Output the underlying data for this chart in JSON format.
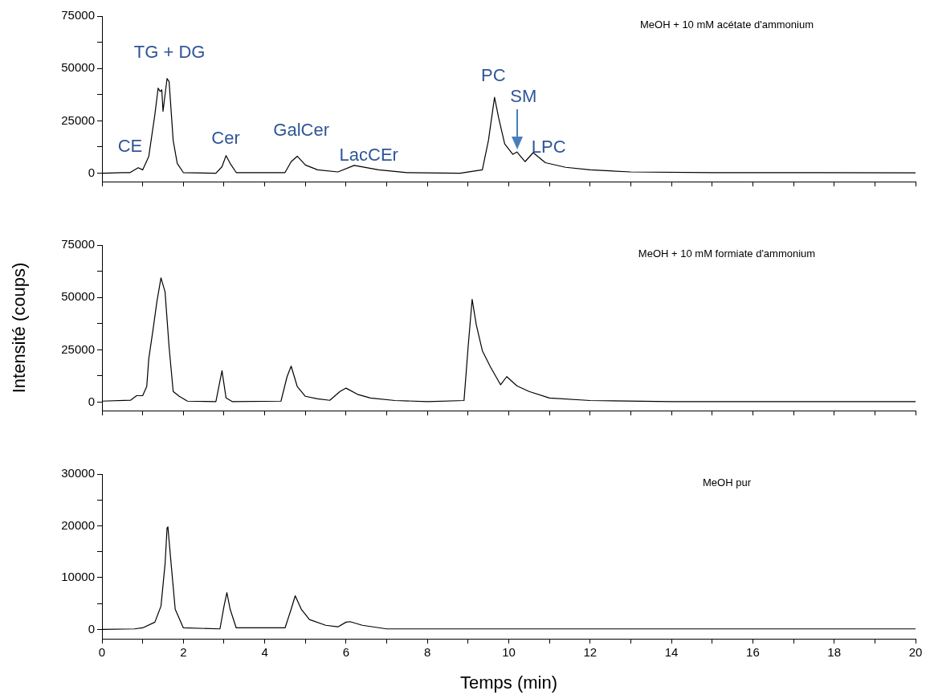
{
  "chart_data": [
    {
      "type": "line",
      "title": "MeOH + 10 mM acétate d'ammonium",
      "tick_labels": "y",
      "x": [
        0,
        0.5,
        0.69,
        0.89,
        1.0,
        1.15,
        1.3,
        1.38,
        1.43,
        1.47,
        1.5,
        1.55,
        1.6,
        1.65,
        1.75,
        1.85,
        2.0,
        2.8,
        2.95,
        3.05,
        3.15,
        3.3,
        4.5,
        4.65,
        4.8,
        5.0,
        5.3,
        5.8,
        6.2,
        6.8,
        7.5,
        8.8,
        9.35,
        9.5,
        9.65,
        9.75,
        9.9,
        10.1,
        10.2,
        10.4,
        10.6,
        10.9,
        11.4,
        12,
        13,
        15,
        20
      ],
      "series": [
        {
          "color": "#000000",
          "values": [
            0,
            300,
            300,
            2600,
            1600,
            8000,
            28000,
            40600,
            39000,
            39800,
            29600,
            37400,
            45200,
            43700,
            15600,
            4700,
            300,
            0,
            3100,
            8400,
            4700,
            300,
            300,
            5500,
            8100,
            3900,
            1600,
            600,
            3700,
            1600,
            300,
            0,
            1600,
            15600,
            36200,
            26500,
            14000,
            9000,
            10100,
            5500,
            9800,
            5000,
            2800,
            1600,
            600,
            300,
            200
          ]
        }
      ],
      "xlim": [
        0,
        20
      ],
      "xticks": [
        0,
        {
          "value": 1,
          "label": null
        },
        2,
        {
          "value": 3,
          "label": null
        },
        4,
        {
          "value": 5,
          "label": null
        },
        6,
        {
          "value": 7,
          "label": null
        },
        8,
        {
          "value": 9,
          "label": null
        },
        10,
        {
          "value": 11,
          "label": null
        },
        12,
        {
          "value": 13,
          "label": null
        },
        14,
        {
          "value": 15,
          "label": null
        },
        16,
        {
          "value": 17,
          "label": null
        },
        18,
        {
          "value": 19,
          "label": null
        },
        20
      ],
      "ylim": [
        -4000,
        75000
      ],
      "yticks": [
        0,
        {
          "value": 12500,
          "label": null
        },
        25000,
        {
          "value": 37500,
          "label": null
        },
        50000,
        {
          "value": 62500,
          "label": null
        },
        75000
      ],
      "annotations": [
        "CE",
        "TG + DG",
        "Cer",
        "GalCer",
        "LacCEr",
        "PC",
        "SM",
        "LPC"
      ]
    },
    {
      "type": "line",
      "title": "MeOH + 10 mM formiate d'ammonium",
      "tick_labels": "y",
      "ylabel": "Intensité (coups)",
      "x": [
        0,
        0.7,
        0.85,
        1.0,
        1.1,
        1.15,
        1.25,
        1.35,
        1.45,
        1.55,
        1.65,
        1.75,
        1.9,
        2.1,
        2.8,
        2.95,
        3.05,
        3.2,
        4.4,
        4.55,
        4.65,
        4.8,
        5.0,
        5.3,
        5.6,
        5.85,
        6.0,
        6.3,
        6.6,
        7.2,
        8.0,
        8.9,
        9.0,
        9.1,
        9.2,
        9.35,
        9.55,
        9.8,
        9.95,
        10.2,
        10.5,
        11.0,
        12,
        14,
        20
      ],
      "series": [
        {
          "color": "#000000",
          "values": [
            500,
            900,
            3100,
            3100,
            7500,
            20700,
            34000,
            48000,
            59300,
            52700,
            26200,
            5100,
            2800,
            500,
            300,
            15000,
            2000,
            300,
            500,
            12200,
            17200,
            7500,
            2800,
            1600,
            900,
            5100,
            6700,
            3600,
            2000,
            800,
            300,
            800,
            26200,
            49100,
            37100,
            24600,
            16800,
            8300,
            12200,
            7800,
            5100,
            2000,
            800,
            300,
            300
          ]
        }
      ],
      "xlim": [
        0,
        20
      ],
      "xticks": [
        0,
        {
          "value": 1,
          "label": null
        },
        2,
        {
          "value": 3,
          "label": null
        },
        4,
        {
          "value": 5,
          "label": null
        },
        6,
        {
          "value": 7,
          "label": null
        },
        8,
        {
          "value": 9,
          "label": null
        },
        10,
        {
          "value": 11,
          "label": null
        },
        12,
        {
          "value": 13,
          "label": null
        },
        14,
        {
          "value": 15,
          "label": null
        },
        16,
        {
          "value": 17,
          "label": null
        },
        18,
        {
          "value": 19,
          "label": null
        },
        20
      ],
      "ylim": [
        -4000,
        75000
      ],
      "yticks": [
        0,
        {
          "value": 12500,
          "label": null
        },
        25000,
        {
          "value": 37500,
          "label": null
        },
        50000,
        {
          "value": 62500,
          "label": null
        },
        75000
      ]
    },
    {
      "type": "line",
      "title": "MeOH pur",
      "xlabel": "Temps (min)",
      "x": [
        0,
        0.8,
        1.0,
        1.3,
        1.45,
        1.55,
        1.6,
        1.62,
        1.7,
        1.8,
        2.0,
        2.9,
        3.0,
        3.07,
        3.15,
        3.3,
        4.5,
        4.65,
        4.75,
        4.9,
        5.1,
        5.5,
        5.8,
        6.0,
        6.1,
        6.4,
        7.0,
        20
      ],
      "series": [
        {
          "color": "#000000",
          "values": [
            0,
            100,
            300,
            1400,
            4500,
            12600,
            19600,
            19800,
            12600,
            3900,
            300,
            100,
            4500,
            7100,
            3900,
            300,
            300,
            3900,
            6500,
            3900,
            1900,
            800,
            500,
            1400,
            1500,
            800,
            100,
            100
          ]
        }
      ],
      "xlim": [
        0,
        20
      ],
      "xticks": [
        0,
        {
          "value": 1,
          "label": null
        },
        2,
        {
          "value": 3,
          "label": null
        },
        4,
        {
          "value": 5,
          "label": null
        },
        6,
        {
          "value": 7,
          "label": null
        },
        8,
        {
          "value": 9,
          "label": null
        },
        10,
        {
          "value": 11,
          "label": null
        },
        12,
        {
          "value": 13,
          "label": null
        },
        14,
        {
          "value": 15,
          "label": null
        },
        16,
        {
          "value": 17,
          "label": null
        },
        18,
        {
          "value": 19,
          "label": null
        },
        20
      ],
      "ylim": [
        -1800,
        30000
      ],
      "yticks": [
        0,
        {
          "value": 5000,
          "label": null
        },
        10000,
        {
          "value": 15000,
          "label": null
        },
        20000,
        {
          "value": 25000,
          "label": null
        },
        30000
      ]
    }
  ]
}
